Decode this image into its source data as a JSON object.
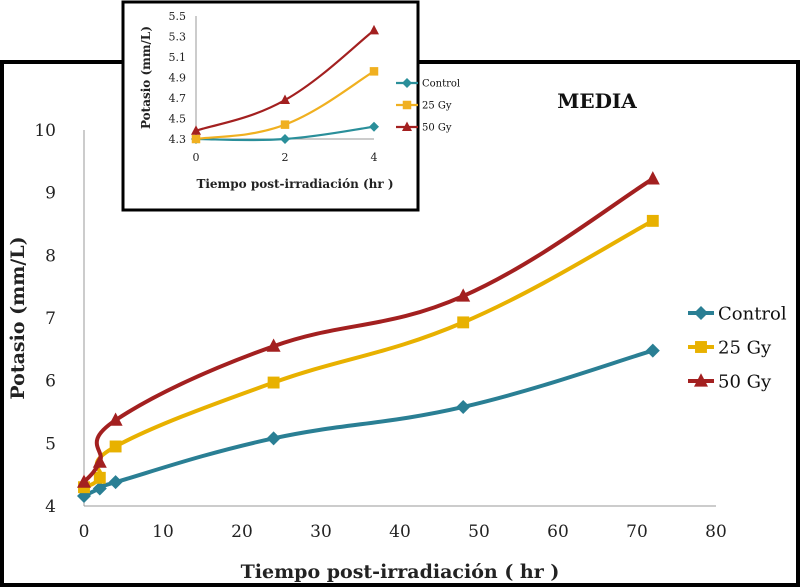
{
  "chart_data": [
    {
      "type": "line",
      "title": "MEDIA",
      "xlabel": "Tiempo post-irradiación ( hr )",
      "ylabel": "Potasio (mm/L)",
      "xlim": [
        0,
        80
      ],
      "ylim": [
        4,
        10
      ],
      "xticks": [
        "0",
        "10",
        "20",
        "30",
        "40",
        "50",
        "60",
        "70",
        "80"
      ],
      "yticks": [
        "4",
        "5",
        "6",
        "7",
        "8",
        "9",
        "10"
      ],
      "x": [
        0,
        2,
        4,
        24,
        48,
        72
      ],
      "legend_position": "right",
      "series": [
        {
          "name": "Control",
          "color": "#2a7f94",
          "marker": "diamond",
          "values": [
            4.16,
            4.28,
            4.38,
            5.08,
            5.58,
            6.48
          ]
        },
        {
          "name": "25 Gy",
          "color": "#e8b100",
          "marker": "square",
          "values": [
            4.3,
            4.45,
            4.95,
            5.97,
            6.93,
            8.55
          ]
        },
        {
          "name": "50 Gy",
          "color": "#a32020",
          "marker": "triangle",
          "values": [
            4.38,
            4.7,
            5.37,
            6.55,
            7.35,
            9.22
          ]
        }
      ]
    },
    {
      "type": "line",
      "title": "",
      "xlabel": "Tiempo post-irradiación (hr )",
      "ylabel": "Potasio (mm/L)",
      "xlim": [
        0,
        4
      ],
      "ylim": [
        4.3,
        5.5
      ],
      "xticks": [
        "0",
        "2",
        "4"
      ],
      "yticks": [
        "4.3",
        "4.5",
        "4.7",
        "4.9",
        "5.1",
        "5.3",
        "5.5"
      ],
      "x": [
        0,
        2,
        4
      ],
      "legend_position": "right",
      "series": [
        {
          "name": "Control",
          "color": "#2a8f9a",
          "marker": "diamond",
          "values": [
            4.3,
            4.3,
            4.42
          ]
        },
        {
          "name": "25 Gy",
          "color": "#f0b020",
          "marker": "square",
          "values": [
            4.3,
            4.44,
            4.96
          ]
        },
        {
          "name": "50 Gy",
          "color": "#a32020",
          "marker": "triangle",
          "values": [
            4.38,
            4.68,
            5.36
          ]
        }
      ]
    }
  ]
}
